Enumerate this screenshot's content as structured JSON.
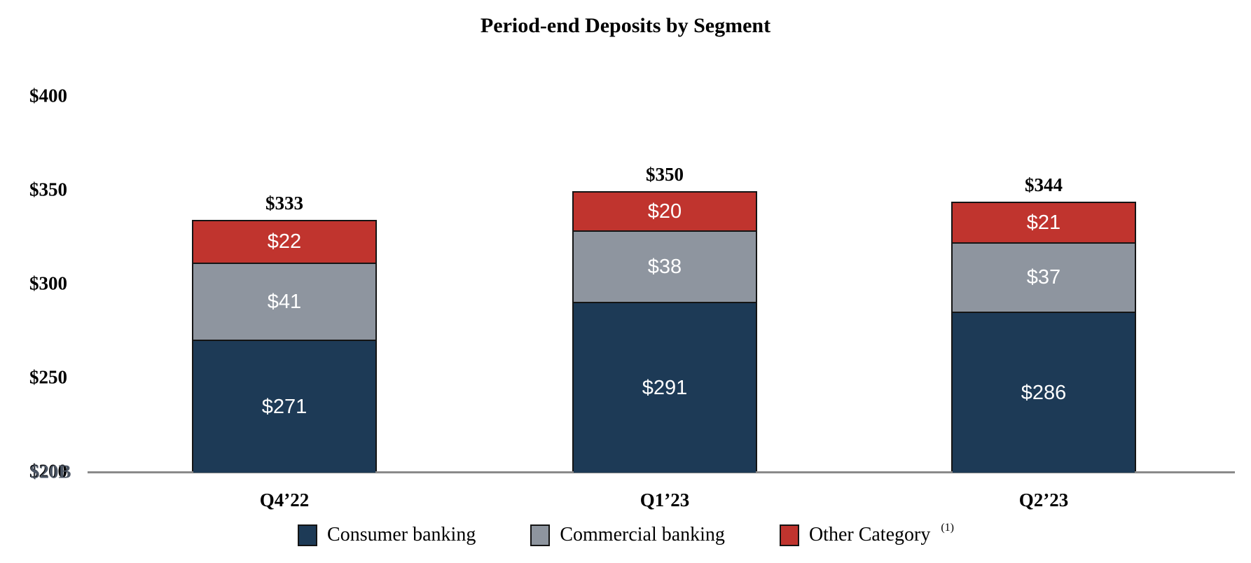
{
  "title": "Period-end Deposits by Segment",
  "chart_data": {
    "type": "bar",
    "stacked": true,
    "title": "Period-end Deposits by Segment",
    "categories": [
      "Q4’22",
      "Q1’23",
      "Q2’23"
    ],
    "series": [
      {
        "name": "Consumer banking",
        "color": "#1d3a56",
        "values": [
          271,
          291,
          286
        ],
        "labels": [
          "$271",
          "$291",
          "$286"
        ]
      },
      {
        "name": "Commercial banking",
        "color": "#8e959f",
        "values": [
          41,
          38,
          37
        ],
        "labels": [
          "$41",
          "$38",
          "$37"
        ]
      },
      {
        "name": "Other Category",
        "color": "#c0342e",
        "values": [
          22,
          20,
          21
        ],
        "labels": [
          "$22",
          "$20",
          "$21"
        ]
      }
    ],
    "totals": {
      "labels": [
        "$333",
        "$350",
        "$344"
      ],
      "values": [
        333,
        350,
        344
      ]
    },
    "ylim": [
      200,
      400
    ],
    "y_ticks": [
      {
        "value": 400,
        "label": "$400"
      },
      {
        "value": 350,
        "label": "$350"
      },
      {
        "value": 300,
        "label": "$300"
      },
      {
        "value": 250,
        "label": "$250"
      },
      {
        "value": 200,
        "label": "$200",
        "overlay": "$20B"
      }
    ],
    "grid": false,
    "legend_position": "bottom",
    "colors": {
      "axis_line": "#8a8a8a",
      "bar_border": "#141414",
      "segment_label": "#ffffff",
      "overlay_label": "#4b5564"
    }
  },
  "legend": {
    "items": [
      {
        "label": "Consumer banking",
        "superscript": ""
      },
      {
        "label": "Commercial banking",
        "superscript": ""
      },
      {
        "label": "Other Category",
        "superscript": "(1)"
      }
    ]
  }
}
